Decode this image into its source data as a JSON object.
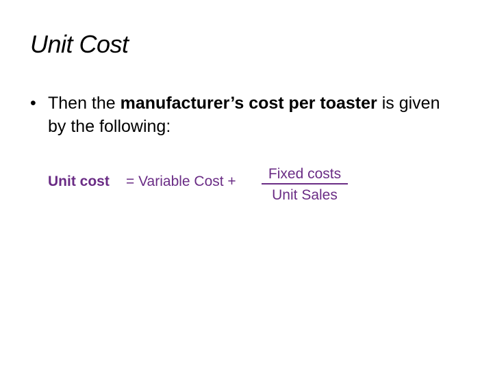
{
  "slide": {
    "title": "Unit Cost",
    "bullet": {
      "prefix": "Then the ",
      "bold": "manufacturer’s cost per toaster",
      "suffix": " is given by the following:"
    },
    "formula": {
      "lhs": "Unit cost",
      "middle": "= Variable Cost +",
      "numerator": "Fixed costs",
      "denominator": "Unit Sales",
      "color": "#6a2c85"
    }
  }
}
